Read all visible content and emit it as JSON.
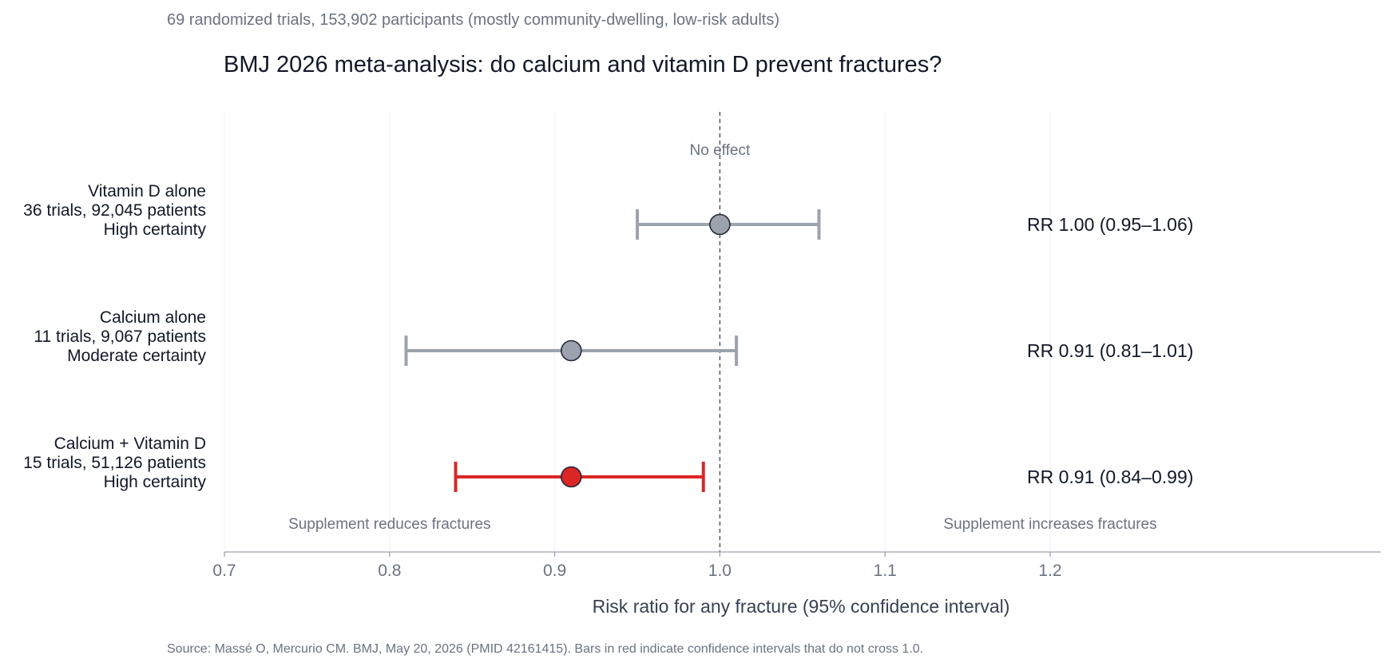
{
  "chart_data": {
    "type": "forest",
    "subtitle": "69 randomized trials, 153,902 participants (mostly community-dwelling, low-risk adults)",
    "title": "BMJ 2026 meta-analysis: do calcium and vitamin D prevent fractures?",
    "xlabel": "Risk ratio for any fracture (95% confidence interval)",
    "xlim": [
      0.7,
      1.4
    ],
    "xticks": [
      "0.7",
      "0.8",
      "0.9",
      "1.0",
      "1.1",
      "1.2"
    ],
    "reference_line": {
      "value": 1.0,
      "label": "No effect",
      "style": "dashed"
    },
    "direction_labels": {
      "left": "Supplement reduces fractures",
      "right": "Supplement increases fractures"
    },
    "grid": "vertical",
    "colors": {
      "nonsignificant": "#9ca3af",
      "significant": "#dc2626",
      "ci_nonsignificant": "#9ca3af",
      "ci_significant": "#dc2626"
    },
    "rows": [
      {
        "label_lines": [
          "Vitamin D alone",
          "36 trials, 92,045 patients",
          "High certainty"
        ],
        "rr": 1.0,
        "lower": 0.95,
        "upper": 1.06,
        "significant": false,
        "stat_text": "RR 1.00 (0.95–1.06)"
      },
      {
        "label_lines": [
          "Calcium alone",
          "11 trials, 9,067 patients",
          "Moderate certainty"
        ],
        "rr": 0.91,
        "lower": 0.81,
        "upper": 1.01,
        "significant": false,
        "stat_text": "RR 0.91 (0.81–1.01)"
      },
      {
        "label_lines": [
          "Calcium + Vitamin D",
          "15 trials, 51,126 patients",
          "High certainty"
        ],
        "rr": 0.91,
        "lower": 0.84,
        "upper": 0.99,
        "significant": true,
        "stat_text": "RR 0.91 (0.84–0.99)"
      }
    ],
    "source": "Source: Massé O, Mercurio CM. BMJ, May 20, 2026 (PMID 42161415). Bars in red indicate confidence intervals that do not cross 1.0."
  }
}
